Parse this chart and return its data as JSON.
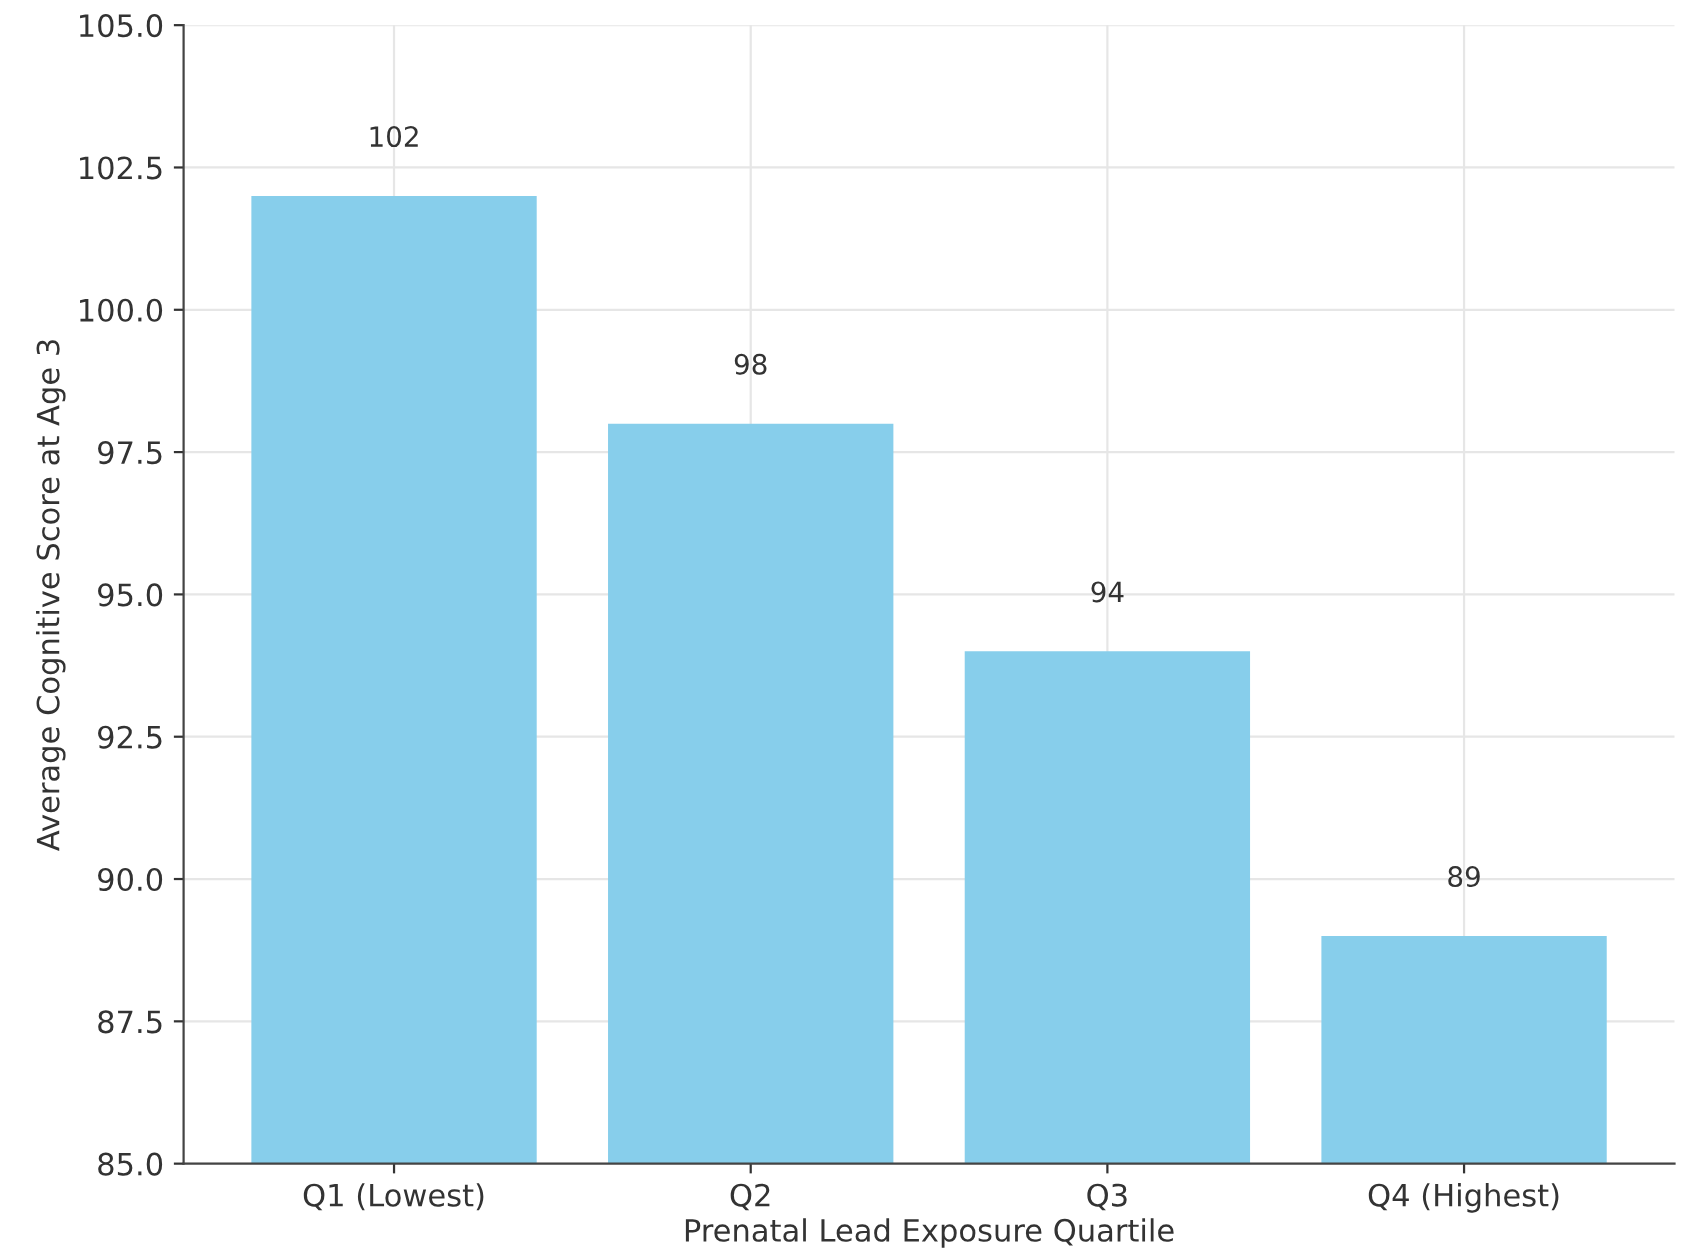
{
  "chart_data": {
    "type": "bar",
    "xlabel": "Prenatal Lead Exposure Quartile",
    "ylabel": "Average Cognitive Score at Age 3",
    "categories": [
      "Q1 (Lowest)",
      "Q2",
      "Q3",
      "Q4 (Highest)"
    ],
    "values": [
      102,
      98,
      94,
      89
    ],
    "color": "#87ceeb",
    "ylim": [
      85,
      105
    ],
    "yticks": [
      {
        "value": 85,
        "label": "85.0"
      },
      {
        "value": 87.5,
        "label": "87.5"
      },
      {
        "value": 90,
        "label": "90.0"
      },
      {
        "value": 92.5,
        "label": "92.5"
      },
      {
        "value": 95,
        "label": "95.0"
      },
      {
        "value": 97.5,
        "label": "97.5"
      },
      {
        "value": 100,
        "label": "100.0"
      },
      {
        "value": 102.5,
        "label": "102.5"
      },
      {
        "value": 105,
        "label": "105.0"
      }
    ],
    "grid": true,
    "data_labels": true
  }
}
